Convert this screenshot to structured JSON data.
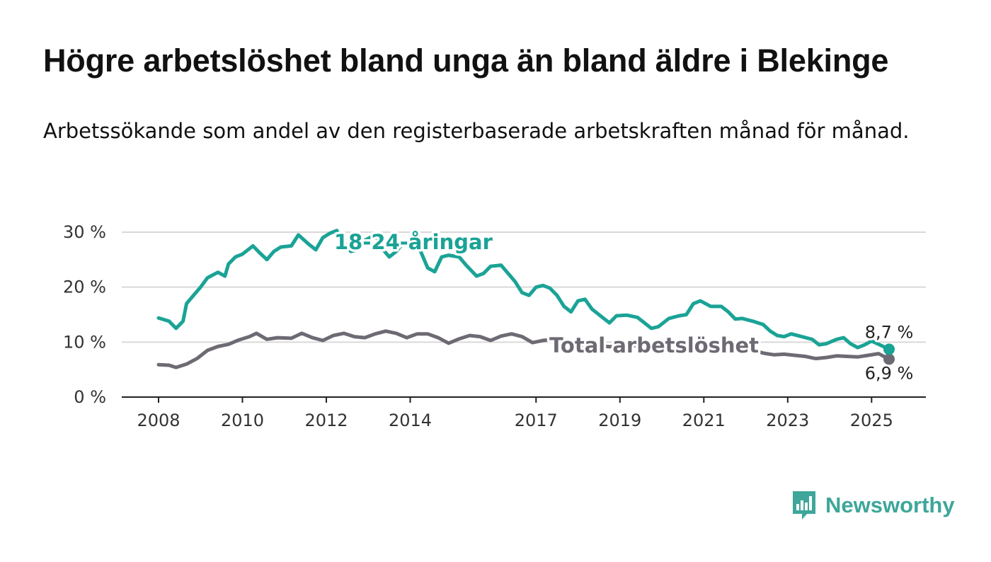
{
  "title": "Högre arbetslöshet bland unga än bland äldre i Blekinge",
  "subtitle": "Arbetssökande som andel av den registerbaserade arbetskraften månad för månad.",
  "brand": {
    "name": "Newsworthy",
    "icon": "bar-chart-speech-bubble-icon"
  },
  "chart_data": {
    "type": "line",
    "x_start": "2008-01",
    "x_end": "2025-06",
    "ylim": [
      0,
      30
    ],
    "y_ticks": [
      {
        "value": 0,
        "label": "0 %"
      },
      {
        "value": 10,
        "label": "10 %"
      },
      {
        "value": 20,
        "label": "20 %"
      },
      {
        "value": 30,
        "label": "30 %"
      }
    ],
    "x_ticks": [
      {
        "year": 2008,
        "label": "2008"
      },
      {
        "year": 2010,
        "label": "2010"
      },
      {
        "year": 2012,
        "label": "2012"
      },
      {
        "year": 2014,
        "label": "2014"
      },
      {
        "year": 2017,
        "label": "2017"
      },
      {
        "year": 2019,
        "label": "2019"
      },
      {
        "year": 2021,
        "label": "2021"
      },
      {
        "year": 2023,
        "label": "2023"
      },
      {
        "year": 2025,
        "label": "2025"
      }
    ],
    "grid": true,
    "series": [
      {
        "name": "18-24-åringar",
        "color": "#1aa396",
        "end_label": "8,7 %",
        "points": [
          [
            "2008-01",
            14.4
          ],
          [
            "2008-04",
            13.8
          ],
          [
            "2008-06",
            12.5
          ],
          [
            "2008-08",
            13.8
          ],
          [
            "2008-09",
            17.0
          ],
          [
            "2008-11",
            18.5
          ],
          [
            "2009-01",
            20.0
          ],
          [
            "2009-03",
            21.7
          ],
          [
            "2009-06",
            22.7
          ],
          [
            "2009-08",
            22.0
          ],
          [
            "2009-09",
            24.2
          ],
          [
            "2009-11",
            25.5
          ],
          [
            "2010-01",
            26.0
          ],
          [
            "2010-04",
            27.5
          ],
          [
            "2010-06",
            26.2
          ],
          [
            "2010-08",
            25.0
          ],
          [
            "2010-10",
            26.5
          ],
          [
            "2010-12",
            27.3
          ],
          [
            "2011-03",
            27.5
          ],
          [
            "2011-05",
            29.5
          ],
          [
            "2011-08",
            27.8
          ],
          [
            "2011-10",
            26.8
          ],
          [
            "2011-12",
            29.0
          ],
          [
            "2012-02",
            29.8
          ],
          [
            "2012-04",
            30.3
          ],
          [
            "2012-06",
            28.0
          ],
          [
            "2012-08",
            26.5
          ],
          [
            "2012-10",
            26.8
          ],
          [
            "2012-12",
            28.5
          ],
          [
            "2013-03",
            29.5
          ],
          [
            "2013-05",
            27.0
          ],
          [
            "2013-07",
            25.5
          ],
          [
            "2013-09",
            26.5
          ],
          [
            "2013-11",
            28.0
          ],
          [
            "2014-02",
            27.8
          ],
          [
            "2014-04",
            26.5
          ],
          [
            "2014-06",
            23.5
          ],
          [
            "2014-08",
            22.8
          ],
          [
            "2014-10",
            25.5
          ],
          [
            "2014-12",
            25.8
          ],
          [
            "2015-03",
            25.5
          ],
          [
            "2015-05",
            24.0
          ],
          [
            "2015-08",
            22.0
          ],
          [
            "2015-10",
            22.5
          ],
          [
            "2015-12",
            23.8
          ],
          [
            "2016-03",
            24.0
          ],
          [
            "2016-05",
            22.5
          ],
          [
            "2016-07",
            21.0
          ],
          [
            "2016-09",
            19.0
          ],
          [
            "2016-11",
            18.5
          ],
          [
            "2017-01",
            20.0
          ],
          [
            "2017-03",
            20.3
          ],
          [
            "2017-05",
            19.8
          ],
          [
            "2017-07",
            18.5
          ],
          [
            "2017-09",
            16.5
          ],
          [
            "2017-11",
            15.5
          ],
          [
            "2018-01",
            17.5
          ],
          [
            "2018-03",
            17.8
          ],
          [
            "2018-05",
            16.0
          ],
          [
            "2018-08",
            14.5
          ],
          [
            "2018-10",
            13.5
          ],
          [
            "2018-12",
            14.8
          ],
          [
            "2019-03",
            14.9
          ],
          [
            "2019-06",
            14.5
          ],
          [
            "2019-08",
            13.5
          ],
          [
            "2019-10",
            12.5
          ],
          [
            "2019-12",
            12.8
          ],
          [
            "2020-03",
            14.3
          ],
          [
            "2020-06",
            14.8
          ],
          [
            "2020-08",
            15.0
          ],
          [
            "2020-10",
            17.0
          ],
          [
            "2020-12",
            17.5
          ],
          [
            "2021-03",
            16.5
          ],
          [
            "2021-06",
            16.5
          ],
          [
            "2021-08",
            15.5
          ],
          [
            "2021-10",
            14.2
          ],
          [
            "2021-12",
            14.3
          ],
          [
            "2022-03",
            13.8
          ],
          [
            "2022-06",
            13.2
          ],
          [
            "2022-08",
            12.0
          ],
          [
            "2022-10",
            11.2
          ],
          [
            "2022-12",
            11.0
          ],
          [
            "2023-02",
            11.5
          ],
          [
            "2023-05",
            11.0
          ],
          [
            "2023-08",
            10.5
          ],
          [
            "2023-10",
            9.5
          ],
          [
            "2023-12",
            9.7
          ],
          [
            "2024-03",
            10.5
          ],
          [
            "2024-05",
            10.8
          ],
          [
            "2024-07",
            9.7
          ],
          [
            "2024-09",
            9.0
          ],
          [
            "2024-11",
            9.5
          ],
          [
            "2025-01",
            10.2
          ],
          [
            "2025-03",
            9.6
          ],
          [
            "2025-06",
            8.7
          ]
        ]
      },
      {
        "name": "Total arbetslöshet",
        "color": "#6e6a73",
        "end_label": "6,9 %",
        "points": [
          [
            "2008-01",
            5.9
          ],
          [
            "2008-04",
            5.8
          ],
          [
            "2008-06",
            5.4
          ],
          [
            "2008-09",
            6.0
          ],
          [
            "2008-12",
            7.0
          ],
          [
            "2009-03",
            8.5
          ],
          [
            "2009-06",
            9.2
          ],
          [
            "2009-09",
            9.6
          ],
          [
            "2009-12",
            10.4
          ],
          [
            "2010-03",
            11.0
          ],
          [
            "2010-05",
            11.6
          ],
          [
            "2010-08",
            10.5
          ],
          [
            "2010-11",
            10.8
          ],
          [
            "2011-03",
            10.7
          ],
          [
            "2011-06",
            11.6
          ],
          [
            "2011-09",
            10.8
          ],
          [
            "2011-12",
            10.3
          ],
          [
            "2012-03",
            11.2
          ],
          [
            "2012-06",
            11.6
          ],
          [
            "2012-09",
            11.0
          ],
          [
            "2012-12",
            10.8
          ],
          [
            "2013-03",
            11.5
          ],
          [
            "2013-06",
            12.0
          ],
          [
            "2013-09",
            11.6
          ],
          [
            "2013-12",
            10.8
          ],
          [
            "2014-03",
            11.5
          ],
          [
            "2014-06",
            11.5
          ],
          [
            "2014-09",
            10.8
          ],
          [
            "2014-12",
            9.8
          ],
          [
            "2015-03",
            10.6
          ],
          [
            "2015-06",
            11.2
          ],
          [
            "2015-09",
            11.0
          ],
          [
            "2015-12",
            10.3
          ],
          [
            "2016-03",
            11.1
          ],
          [
            "2016-06",
            11.5
          ],
          [
            "2016-09",
            11.0
          ],
          [
            "2016-12",
            9.9
          ],
          [
            "2017-03",
            10.3
          ],
          [
            "2017-06",
            10.5
          ],
          [
            "2017-09",
            9.9
          ],
          [
            "2017-12",
            9.6
          ],
          [
            "2018-06",
            9.3
          ],
          [
            "2018-12",
            9.1
          ],
          [
            "2019-06",
            9.4
          ],
          [
            "2019-12",
            9.3
          ],
          [
            "2020-06",
            10.3
          ],
          [
            "2020-12",
            9.8
          ],
          [
            "2021-06",
            9.4
          ],
          [
            "2021-12",
            8.8
          ],
          [
            "2022-03",
            8.6
          ],
          [
            "2022-06",
            8.0
          ],
          [
            "2022-09",
            7.7
          ],
          [
            "2022-12",
            7.8
          ],
          [
            "2023-03",
            7.6
          ],
          [
            "2023-06",
            7.4
          ],
          [
            "2023-09",
            7.0
          ],
          [
            "2023-12",
            7.2
          ],
          [
            "2024-03",
            7.5
          ],
          [
            "2024-06",
            7.4
          ],
          [
            "2024-09",
            7.3
          ],
          [
            "2024-12",
            7.6
          ],
          [
            "2025-03",
            7.9
          ],
          [
            "2025-06",
            6.9
          ]
        ]
      }
    ]
  }
}
